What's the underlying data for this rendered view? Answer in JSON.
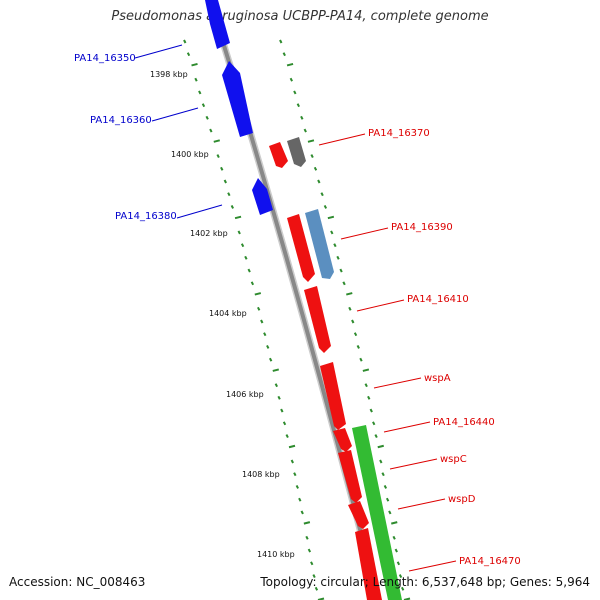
{
  "header": {
    "title": "Pseudomonas aeruginosa UCBPP-PA14, complete genome"
  },
  "footer": {
    "accession": "Accession: NC_008463",
    "summary": "Topology: circular; Length: 6,537,648 bp; Genes: 5,964"
  },
  "map": {
    "backbone_color": "#888888",
    "tick_color": "#2e8b2e",
    "scale_labels": [
      "1398 kbp",
      "1400 kbp",
      "1402 kbp",
      "1404 kbp",
      "1406 kbp",
      "1408 kbp",
      "1410 kbp"
    ],
    "label_colors": {
      "left": "#0000cc",
      "right": "#dd0000"
    },
    "genes_left": [
      {
        "label": "PA14_16350",
        "color": "#1010ee"
      },
      {
        "label": "PA14_16360",
        "color": "#1010ee"
      },
      {
        "label": "PA14_16380",
        "color": "#1010ee"
      }
    ],
    "genes_right": [
      {
        "label": "PA14_16370",
        "color": "#ee1111"
      },
      {
        "label": "PA14_16390",
        "color": "#ee1111"
      },
      {
        "label": "PA14_16410",
        "color": "#ee1111"
      },
      {
        "label": "wspA",
        "color": "#ee1111"
      },
      {
        "label": "PA14_16440",
        "color": "#ee1111"
      },
      {
        "label": "wspC",
        "color": "#ee1111"
      },
      {
        "label": "wspD",
        "color": "#ee1111"
      },
      {
        "label": "PA14_16470",
        "color": "#ee1111"
      }
    ],
    "extra_features": [
      {
        "name": "gray-feature",
        "color": "#666666"
      },
      {
        "name": "steelblue-feature",
        "color": "#5b8fc0"
      },
      {
        "name": "green-feature",
        "color": "#33bb33"
      }
    ]
  }
}
